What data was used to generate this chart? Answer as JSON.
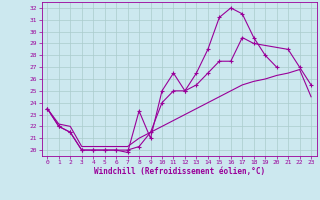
{
  "xlabel": "Windchill (Refroidissement éolien,°C)",
  "background_color": "#cce8ef",
  "grid_color": "#aacccc",
  "line_color": "#990099",
  "xlim": [
    -0.5,
    23.5
  ],
  "ylim": [
    19.5,
    32.5
  ],
  "xticks": [
    0,
    1,
    2,
    3,
    4,
    5,
    6,
    7,
    8,
    9,
    10,
    11,
    12,
    13,
    14,
    15,
    16,
    17,
    18,
    19,
    20,
    21,
    22,
    23
  ],
  "yticks": [
    20,
    21,
    22,
    23,
    24,
    25,
    26,
    27,
    28,
    29,
    30,
    31,
    32
  ],
  "line1_x": [
    0,
    1,
    2,
    3,
    4,
    5,
    6,
    7,
    8,
    9,
    10,
    11,
    12,
    13,
    14,
    15,
    16,
    17,
    18,
    19,
    20,
    21,
    22,
    23
  ],
  "line1_y": [
    23.5,
    22.0,
    21.5,
    20.0,
    20.0,
    20.0,
    20.0,
    19.8,
    23.3,
    21.0,
    25.0,
    26.5,
    25.0,
    26.5,
    28.5,
    31.2,
    32.0,
    31.5,
    29.5,
    28.0,
    27.0,
    null,
    null,
    null
  ],
  "line2_x": [
    0,
    1,
    2,
    3,
    4,
    5,
    6,
    7,
    8,
    9,
    10,
    11,
    12,
    13,
    14,
    15,
    16,
    17,
    18,
    19,
    20,
    21,
    22,
    23
  ],
  "line2_y": [
    23.5,
    22.0,
    21.5,
    20.0,
    20.0,
    20.0,
    20.0,
    20.0,
    20.3,
    21.5,
    24.0,
    25.0,
    25.0,
    25.5,
    26.5,
    27.5,
    27.5,
    29.5,
    29.0,
    null,
    null,
    28.5,
    27.0,
    25.5
  ],
  "line3_x": [
    0,
    1,
    2,
    3,
    4,
    5,
    6,
    7,
    8,
    9,
    10,
    11,
    12,
    13,
    14,
    15,
    16,
    17,
    18,
    19,
    20,
    21,
    22,
    23
  ],
  "line3_y": [
    23.5,
    22.2,
    22.0,
    20.3,
    20.3,
    20.3,
    20.3,
    20.3,
    21.0,
    21.5,
    22.0,
    22.5,
    23.0,
    23.5,
    24.0,
    24.5,
    25.0,
    25.5,
    25.8,
    26.0,
    26.3,
    26.5,
    26.8,
    24.5
  ]
}
